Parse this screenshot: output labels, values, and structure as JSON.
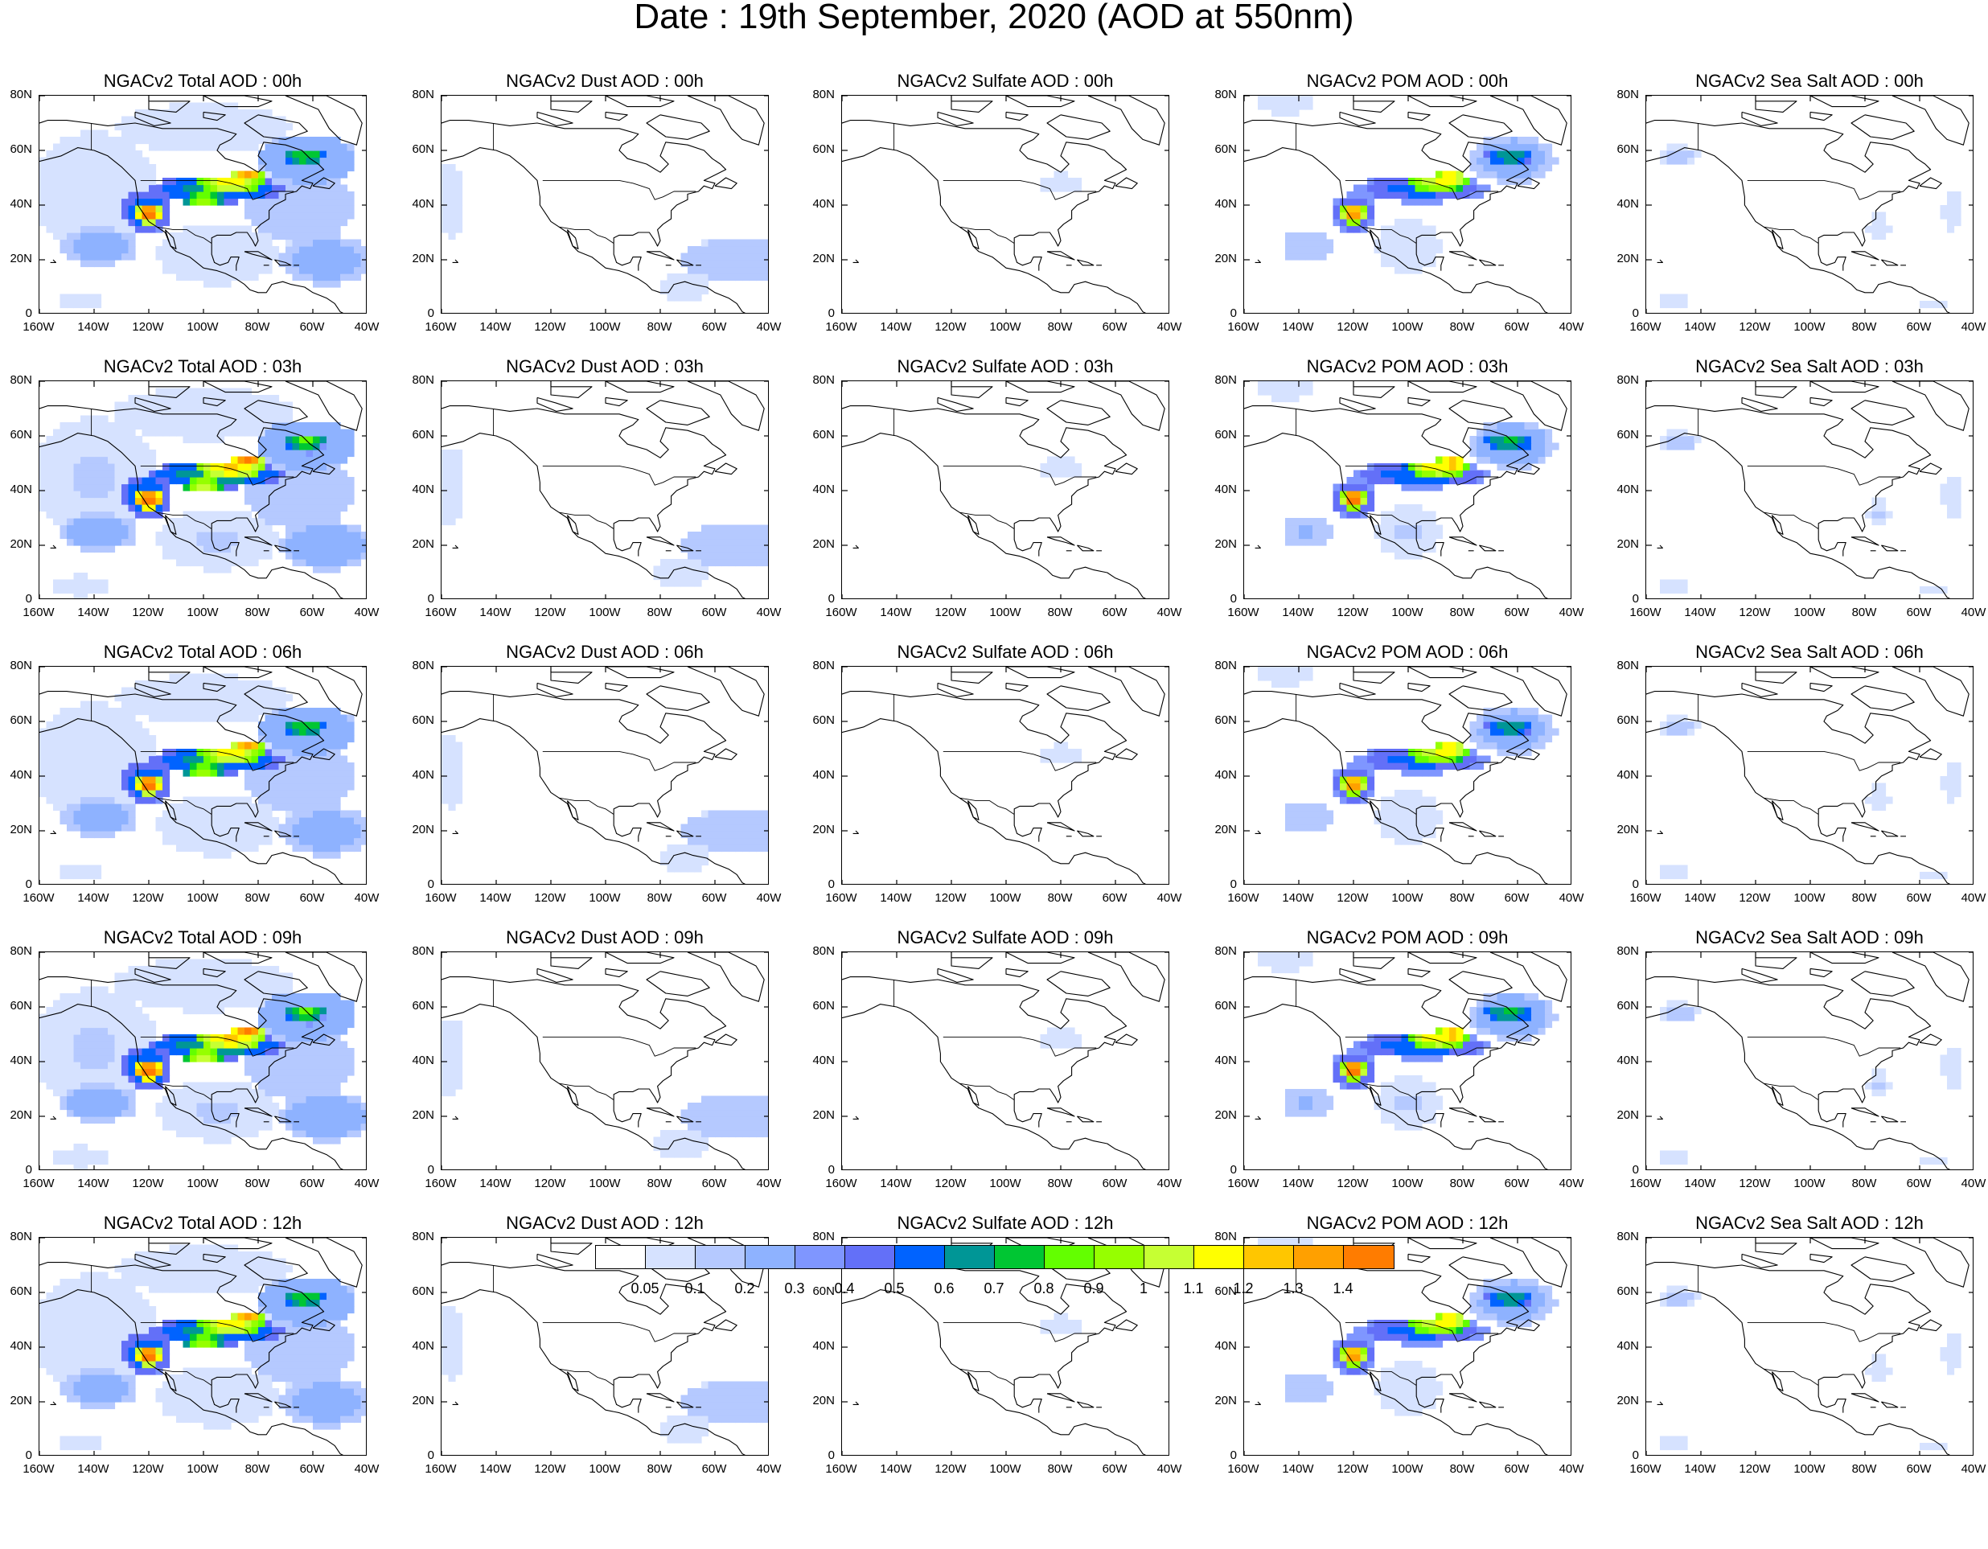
{
  "figure": {
    "title": "Date : 19th September, 2020 (AOD at 550nm)"
  },
  "panel_titles": [
    [
      "NGACv2 Total AOD : 00h",
      "NGACv2 Dust AOD : 00h",
      "NGACv2 Sulfate AOD : 00h",
      "NGACv2 POM AOD : 00h",
      "NGACv2 Sea Salt AOD : 00h"
    ],
    [
      "NGACv2 Total AOD : 03h",
      "NGACv2 Dust AOD : 03h",
      "NGACv2 Sulfate AOD : 03h",
      "NGACv2 POM AOD : 03h",
      "NGACv2 Sea Salt AOD : 03h"
    ],
    [
      "NGACv2 Total AOD : 06h",
      "NGACv2 Dust AOD : 06h",
      "NGACv2 Sulfate AOD : 06h",
      "NGACv2 POM AOD : 06h",
      "NGACv2 Sea Salt AOD : 06h"
    ],
    [
      "NGACv2 Total AOD : 09h",
      "NGACv2 Dust AOD : 09h",
      "NGACv2 Sulfate AOD : 09h",
      "NGACv2 POM AOD : 09h",
      "NGACv2 Sea Salt  AOD : 09h"
    ],
    [
      "NGACv2 Total AOD  : 12h",
      "NGACv2 Dust AOD : 12h",
      "NGACv2 Sulfate AOD : 12h",
      "NGACv2 POM  AOD : 12h",
      "NGACv2 Sea Salt  AOD : 12h"
    ]
  ],
  "axes": {
    "lat_ticks": [
      "80N",
      "60N",
      "40N",
      "20N",
      "0"
    ],
    "lon_ticks": [
      "160W",
      "140W",
      "120W",
      "100W",
      "80W",
      "60W",
      "40W"
    ],
    "lat_range": [
      0,
      80
    ],
    "lon_range": [
      -160,
      -40
    ]
  },
  "colorbar": {
    "colors": [
      "#ffffff",
      "#d6e2ff",
      "#b5c9ff",
      "#8eb2ff",
      "#7f96ff",
      "#6370f8",
      "#0063ff",
      "#009696",
      "#00c633",
      "#63ff00",
      "#96ff00",
      "#c6ff33",
      "#ffff00",
      "#ffc600",
      "#ffa000",
      "#ff7c00",
      "#ff1900"
    ],
    "labels": [
      "0.05",
      "0.1",
      "0.2",
      "0.3",
      "0.4",
      "0.5",
      "0.6",
      "0.7",
      "0.8",
      "0.9",
      "1",
      "1.1",
      "1.2",
      "1.3",
      "1.4"
    ]
  },
  "map_data": {
    "row_intensity": [
      1.0,
      1.05,
      1.0,
      1.05,
      1.0
    ],
    "species": {
      "total": [
        {
          "lon": -120,
          "lat": 37,
          "rx": 5,
          "ry": 4,
          "value": 1.45
        },
        {
          "lon": -121,
          "lat": 38,
          "rx": 9,
          "ry": 8,
          "value": 0.6
        },
        {
          "lon": -95,
          "lat": 46,
          "rx": 25,
          "ry": 5,
          "value": 0.65
        },
        {
          "lon": -90,
          "lat": 48,
          "rx": 13,
          "ry": 3,
          "value": 1.2
        },
        {
          "lon": -84,
          "lat": 51,
          "rx": 6,
          "ry": 2.5,
          "value": 1.35
        },
        {
          "lon": -100,
          "lat": 42,
          "rx": 7,
          "ry": 3,
          "value": 1.0
        },
        {
          "lon": -63,
          "lat": 58,
          "rx": 8,
          "ry": 3,
          "value": 0.8
        },
        {
          "lon": -62,
          "lat": 57,
          "rx": 18,
          "ry": 9,
          "value": 0.3
        },
        {
          "lon": -138,
          "lat": 25,
          "rx": 14,
          "ry": 7,
          "value": 0.25
        },
        {
          "lon": -55,
          "lat": 20,
          "rx": 17,
          "ry": 9,
          "value": 0.25
        },
        {
          "lon": -140,
          "lat": 45,
          "rx": 24,
          "ry": 22,
          "value": 0.1
        },
        {
          "lon": -95,
          "lat": 22,
          "rx": 22,
          "ry": 11,
          "value": 0.1
        },
        {
          "lon": -65,
          "lat": 40,
          "rx": 20,
          "ry": 14,
          "value": 0.15
        },
        {
          "lon": -100,
          "lat": 68,
          "rx": 35,
          "ry": 10,
          "value": 0.07
        },
        {
          "lon": -145,
          "lat": 5,
          "rx": 10,
          "ry": 4,
          "value": 0.07
        }
      ],
      "dust": [
        {
          "lon": -52,
          "lat": 20,
          "rx": 20,
          "ry": 8,
          "value": 0.15
        },
        {
          "lon": -157,
          "lat": 42,
          "rx": 6,
          "ry": 15,
          "value": 0.07
        },
        {
          "lon": -72,
          "lat": 10,
          "rx": 10,
          "ry": 6,
          "value": 0.07
        }
      ],
      "sulfate": [
        {
          "lon": -80,
          "lat": 48,
          "rx": 9,
          "ry": 4,
          "value": 0.07
        }
      ],
      "pom": [
        {
          "lon": -120,
          "lat": 37,
          "rx": 4.5,
          "ry": 3.5,
          "value": 1.4
        },
        {
          "lon": -120,
          "lat": 37,
          "rx": 8,
          "ry": 7,
          "value": 0.55
        },
        {
          "lon": -95,
          "lat": 46,
          "rx": 24,
          "ry": 5,
          "value": 0.55
        },
        {
          "lon": -89,
          "lat": 48,
          "rx": 12,
          "ry": 2.5,
          "value": 1.15
        },
        {
          "lon": -84,
          "lat": 50,
          "rx": 6,
          "ry": 2.5,
          "value": 1.3
        },
        {
          "lon": -63,
          "lat": 58,
          "rx": 9,
          "ry": 3,
          "value": 0.7
        },
        {
          "lon": -62,
          "lat": 57,
          "rx": 16,
          "ry": 9,
          "value": 0.25
        },
        {
          "lon": -137,
          "lat": 25,
          "rx": 9,
          "ry": 6,
          "value": 0.2
        },
        {
          "lon": -100,
          "lat": 25,
          "rx": 12,
          "ry": 10,
          "value": 0.1
        },
        {
          "lon": -145,
          "lat": 77,
          "rx": 12,
          "ry": 4,
          "value": 0.07
        }
      ],
      "seasalt": [
        {
          "lon": -148,
          "lat": 58,
          "rx": 7,
          "ry": 4,
          "value": 0.12
        },
        {
          "lon": -75,
          "lat": 32,
          "rx": 4,
          "ry": 5,
          "value": 0.1
        },
        {
          "lon": -48,
          "lat": 38,
          "rx": 4,
          "ry": 8,
          "value": 0.07
        },
        {
          "lon": -150,
          "lat": 5,
          "rx": 6,
          "ry": 2,
          "value": 0.07
        },
        {
          "lon": -55,
          "lat": 4,
          "rx": 6,
          "ry": 2,
          "value": 0.07
        }
      ]
    }
  }
}
